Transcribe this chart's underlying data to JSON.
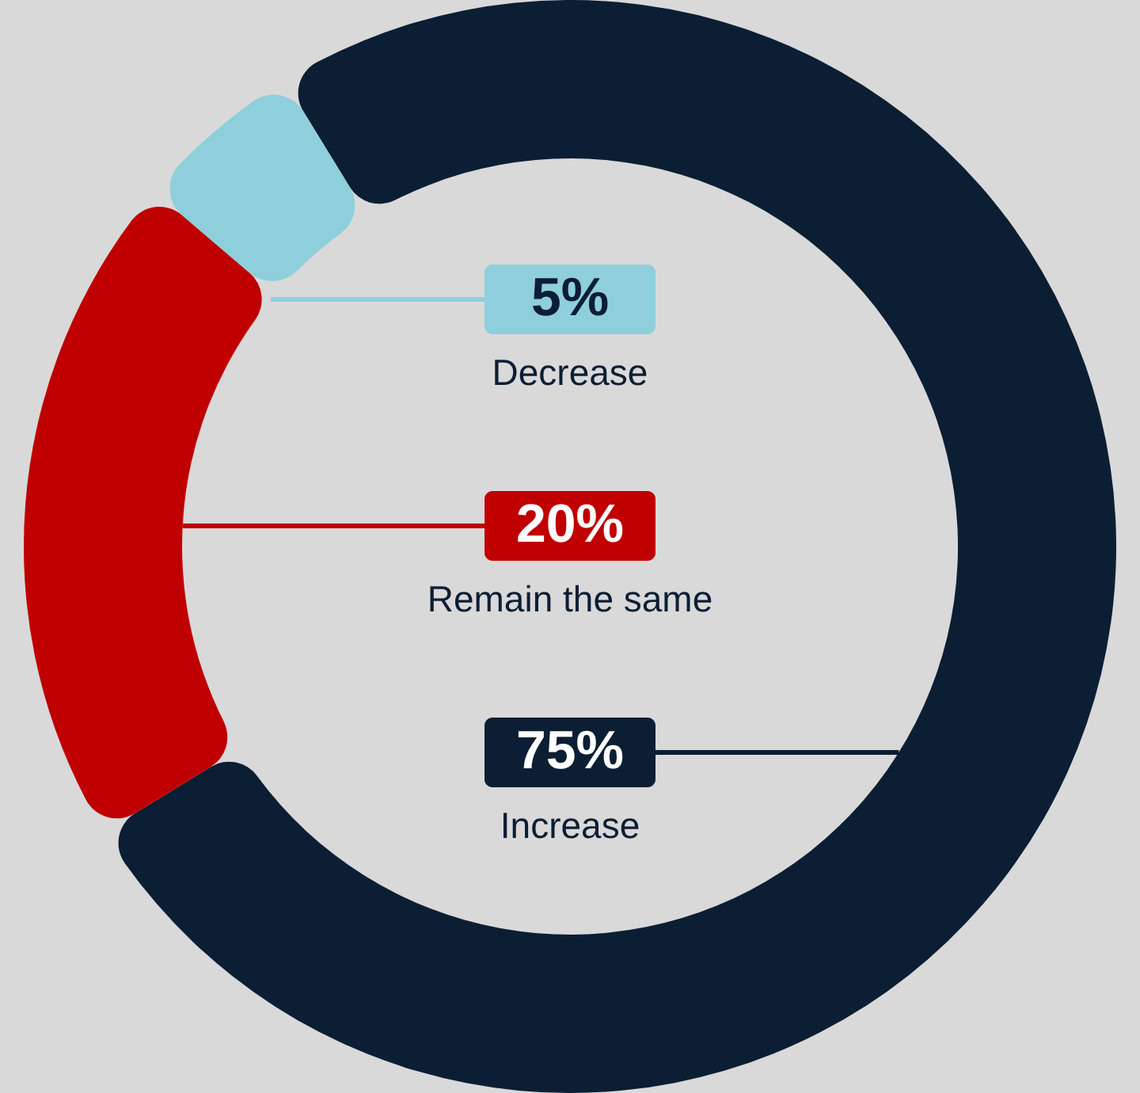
{
  "chart_data": {
    "type": "donut",
    "categories": [
      "Increase",
      "Remain the same",
      "Decrease"
    ],
    "values": [
      75,
      20,
      5
    ],
    "value_labels": [
      "75%",
      "20%",
      "5%"
    ],
    "colors": [
      "#0c1e33",
      "#c00000",
      "#8ecfdb"
    ],
    "legend": "center"
  }
}
